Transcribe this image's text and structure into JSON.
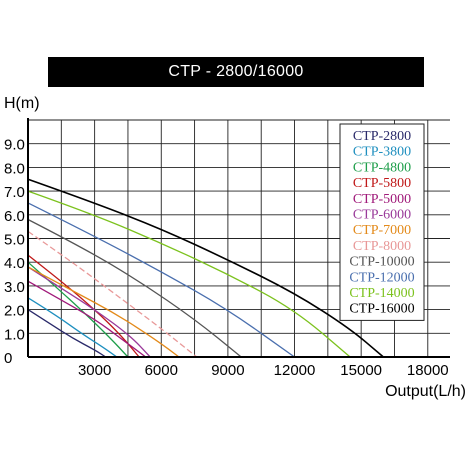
{
  "chart_data": {
    "type": "line",
    "title": "CTP - 2800/16000",
    "ylabel": "H(m)",
    "xlabel": "Output(L/h)",
    "xlim": [
      0,
      19000
    ],
    "ylim": [
      0,
      10
    ],
    "x_ticks": [
      3000,
      6000,
      9000,
      12000,
      15000,
      18000
    ],
    "x_tick_labels": [
      "3000",
      "6000",
      "9000",
      "12000",
      "15000",
      "18000"
    ],
    "y_ticks": [
      0,
      1,
      2,
      3,
      4,
      5,
      6,
      7,
      8,
      9
    ],
    "y_tick_labels": [
      "0",
      "1.0",
      "2.0",
      "3.0",
      "4.0",
      "5.0",
      "6.0",
      "7.0",
      "8.0",
      "9.0"
    ],
    "grid": true,
    "legend_position": "top-right",
    "series": [
      {
        "name": "CTP-2800",
        "color": "#2a2a6a",
        "dash": false,
        "points": [
          [
            0,
            2.0
          ],
          [
            1000,
            1.4
          ],
          [
            2000,
            0.8
          ],
          [
            3000,
            0.3
          ],
          [
            3500,
            0
          ]
        ]
      },
      {
        "name": "CTP-3800",
        "color": "#1e8fbf",
        "dash": false,
        "points": [
          [
            0,
            2.5
          ],
          [
            1200,
            1.8
          ],
          [
            2400,
            1.0
          ],
          [
            3400,
            0.4
          ],
          [
            4000,
            0
          ]
        ]
      },
      {
        "name": "CTP-4800",
        "color": "#1e9e4a",
        "dash": false,
        "points": [
          [
            0,
            4.0
          ],
          [
            1200,
            3.0
          ],
          [
            2500,
            1.9
          ],
          [
            3700,
            0.8
          ],
          [
            4500,
            0
          ]
        ]
      },
      {
        "name": "CTP-5800",
        "color": "#c01818",
        "dash": false,
        "points": [
          [
            0,
            4.3
          ],
          [
            1500,
            3.2
          ],
          [
            3000,
            2.0
          ],
          [
            4200,
            0.9
          ],
          [
            5000,
            0
          ]
        ]
      },
      {
        "name": "CTP-5000",
        "color": "#a01a7a",
        "dash": false,
        "points": [
          [
            0,
            3.2
          ],
          [
            1500,
            2.4
          ],
          [
            3000,
            1.6
          ],
          [
            4300,
            0.7
          ],
          [
            5300,
            0
          ]
        ]
      },
      {
        "name": "CTP-6000",
        "color": "#9a3a9a",
        "dash": false,
        "points": [
          [
            0,
            3.8
          ],
          [
            1500,
            2.9
          ],
          [
            3000,
            2.0
          ],
          [
            4600,
            0.9
          ],
          [
            5500,
            0
          ]
        ]
      },
      {
        "name": "CTP-7000",
        "color": "#e38a1a",
        "dash": false,
        "points": [
          [
            0,
            3.8
          ],
          [
            2000,
            2.8
          ],
          [
            4000,
            1.8
          ],
          [
            5800,
            0.7
          ],
          [
            6800,
            0
          ]
        ]
      },
      {
        "name": "CTP-8000",
        "color": "#e89898",
        "dash": true,
        "points": [
          [
            0,
            5.3
          ],
          [
            2000,
            4.0
          ],
          [
            4000,
            2.6
          ],
          [
            6000,
            1.2
          ],
          [
            7600,
            0
          ]
        ]
      },
      {
        "name": "CTP-10000",
        "color": "#555555",
        "dash": false,
        "points": [
          [
            0,
            5.8
          ],
          [
            2500,
            4.6
          ],
          [
            5000,
            3.2
          ],
          [
            7500,
            1.6
          ],
          [
            9600,
            0
          ]
        ]
      },
      {
        "name": "CTP-12000",
        "color": "#4a6fae",
        "dash": false,
        "points": [
          [
            0,
            6.5
          ],
          [
            3000,
            5.1
          ],
          [
            6000,
            3.6
          ],
          [
            9000,
            2.0
          ],
          [
            12000,
            0
          ]
        ]
      },
      {
        "name": "CTP-14000",
        "color": "#7cc21e",
        "dash": false,
        "points": [
          [
            0,
            7.0
          ],
          [
            3000,
            6.0
          ],
          [
            6000,
            4.8
          ],
          [
            9000,
            3.5
          ],
          [
            12000,
            2.0
          ],
          [
            14500,
            0
          ]
        ]
      },
      {
        "name": "CTP-16000",
        "color": "#000000",
        "dash": false,
        "points": [
          [
            0,
            7.5
          ],
          [
            3000,
            6.5
          ],
          [
            6000,
            5.4
          ],
          [
            9000,
            4.1
          ],
          [
            12000,
            2.7
          ],
          [
            14500,
            1.2
          ],
          [
            16000,
            0
          ]
        ]
      }
    ]
  }
}
